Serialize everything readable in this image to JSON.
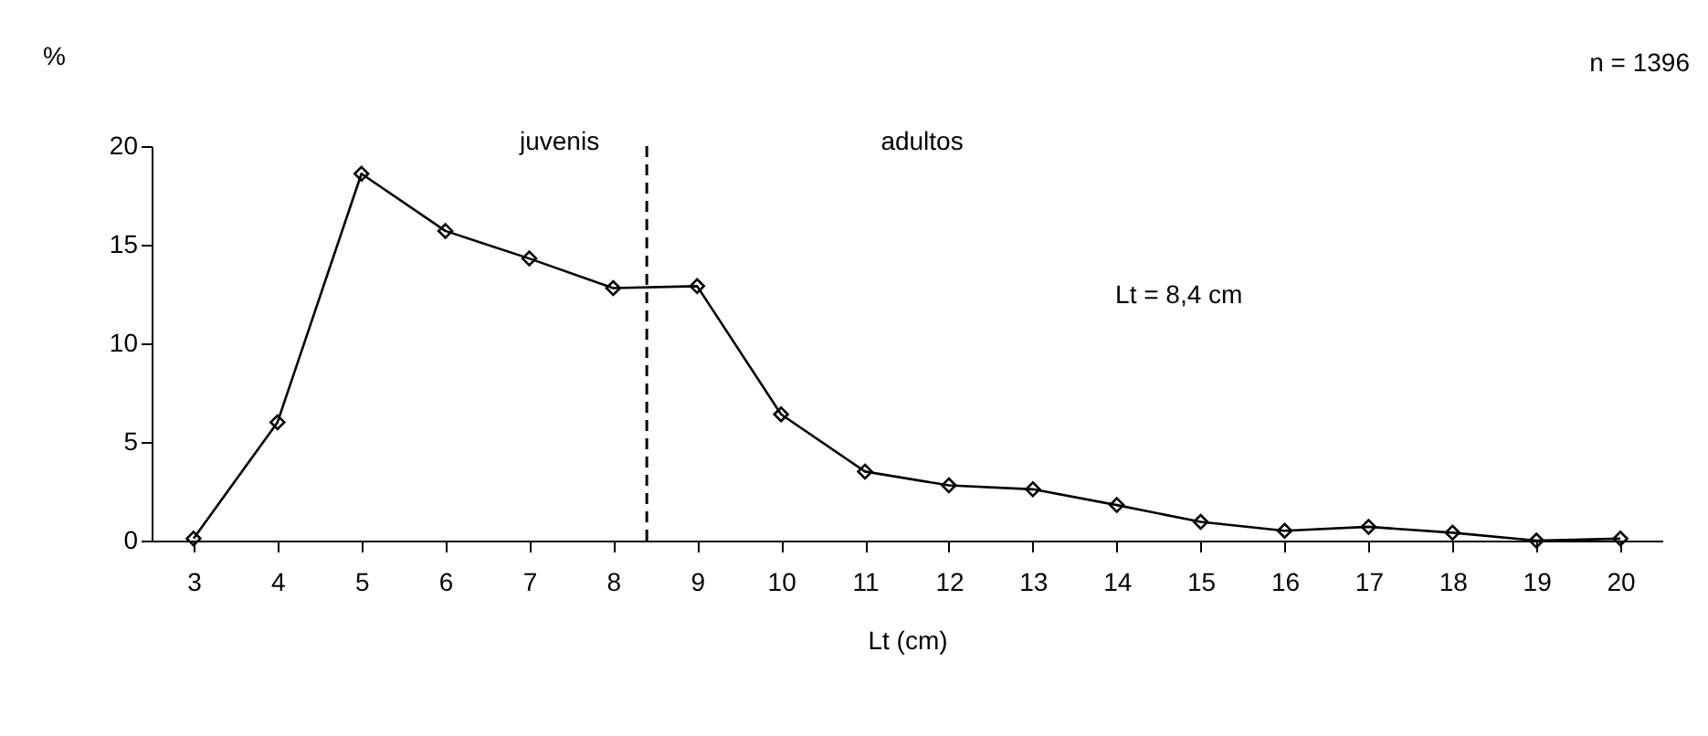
{
  "chart_data": {
    "type": "line",
    "xlabel": "Lt (cm)",
    "ylabel": "%",
    "x": [
      3,
      4,
      5,
      6,
      7,
      8,
      9,
      10,
      11,
      12,
      13,
      14,
      15,
      16,
      17,
      18,
      19,
      20
    ],
    "series": [
      {
        "color": "#000000",
        "values": [
          0.1,
          6.0,
          18.6,
          15.7,
          14.3,
          12.8,
          12.9,
          6.4,
          3.5,
          2.8,
          2.6,
          1.8,
          0.95,
          0.5,
          0.7,
          0.4,
          0.0,
          0.1
        ]
      }
    ],
    "xlim": [
      2.5,
      20.5
    ],
    "xticks": [
      3,
      4,
      5,
      6,
      7,
      8,
      9,
      10,
      11,
      12,
      13,
      14,
      15,
      16,
      17,
      18,
      19,
      20
    ],
    "ylim": [
      0,
      20
    ],
    "yticks": [
      0,
      5,
      10,
      15,
      20
    ],
    "ref_lines": [
      {
        "axis": "x",
        "value": 8.4,
        "line_style": "dashed",
        "color": "#000000"
      }
    ],
    "annotations": [
      "n = 1396",
      "juvenis",
      "adultos",
      "Lt = 8,4 cm"
    ],
    "marker": "diamond",
    "line_style": "solid"
  }
}
